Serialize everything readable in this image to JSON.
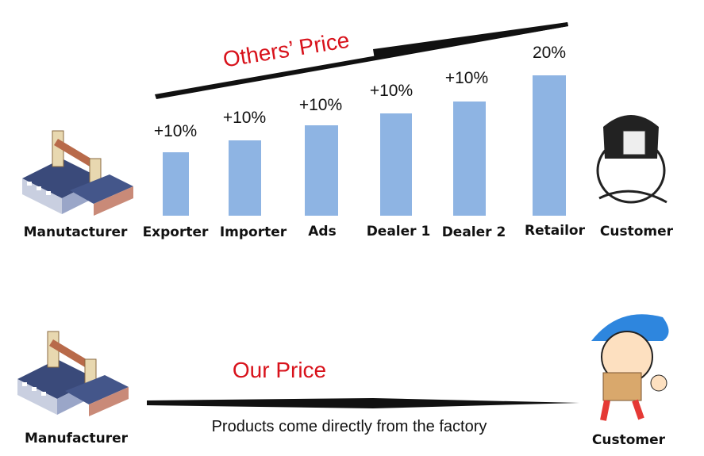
{
  "top": {
    "title": "Others’ Price",
    "start": "Manutacturer",
    "end": "Customer",
    "stages": [
      {
        "label": "Exporter",
        "markup": "+10%"
      },
      {
        "label": "Importer",
        "markup": "+10%"
      },
      {
        "label": "Ads",
        "markup": "+10%"
      },
      {
        "label": "Dealer 1",
        "markup": "+10%"
      },
      {
        "label": "Dealer 2",
        "markup": "+10%"
      },
      {
        "label": "Retailor",
        "markup": "20%"
      }
    ]
  },
  "bottom": {
    "title": "Our Price",
    "start": "Manufacturer",
    "end": "Customer",
    "caption": "Products come directly from the factory"
  }
}
